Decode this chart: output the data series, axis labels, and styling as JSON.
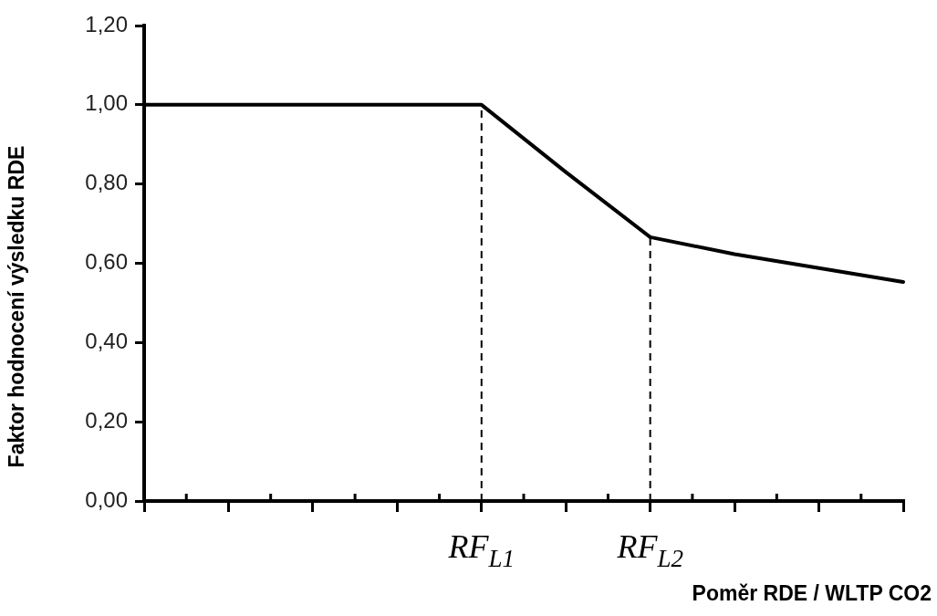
{
  "chart_data": {
    "type": "line",
    "xlabel": "Poměr RDE / WLTP CO2",
    "ylabel": "Faktor hodnocení výsledku RDE",
    "categories": [
      null,
      null,
      null,
      null,
      "RF$_{L1}$",
      null,
      "RF$_{L2}$",
      null,
      null,
      null
    ],
    "series": [
      {
        "color": "#000000",
        "values": [
          1.0,
          1.0,
          1.0,
          1.0,
          1.0,
          0.83,
          0.666,
          0.623,
          0.588,
          0.553
        ]
      }
    ],
    "ylim": [
      0,
      1.2
    ],
    "yticks": [
      {
        "value": 0,
        "label": "0,00"
      },
      {
        "value": 0.2,
        "label": "0,20"
      },
      {
        "value": 0.4,
        "label": "0,40"
      },
      {
        "value": 0.6,
        "label": "0,60"
      },
      {
        "value": 0.8,
        "label": "0,80"
      },
      {
        "value": 1.0,
        "label": "1,00"
      },
      {
        "value": 1.2,
        "label": "1,20"
      }
    ],
    "ref_lines": [
      {
        "axis": "x",
        "value": "RF$_{L1}$",
        "color": "#000000",
        "line_style": "dashed"
      },
      {
        "axis": "x",
        "value": "RF$_{L2}$",
        "color": "#000000",
        "line_style": "dashed"
      }
    ],
    "grid": false,
    "legend": false,
    "marker": "none",
    "line_style": "solid"
  }
}
